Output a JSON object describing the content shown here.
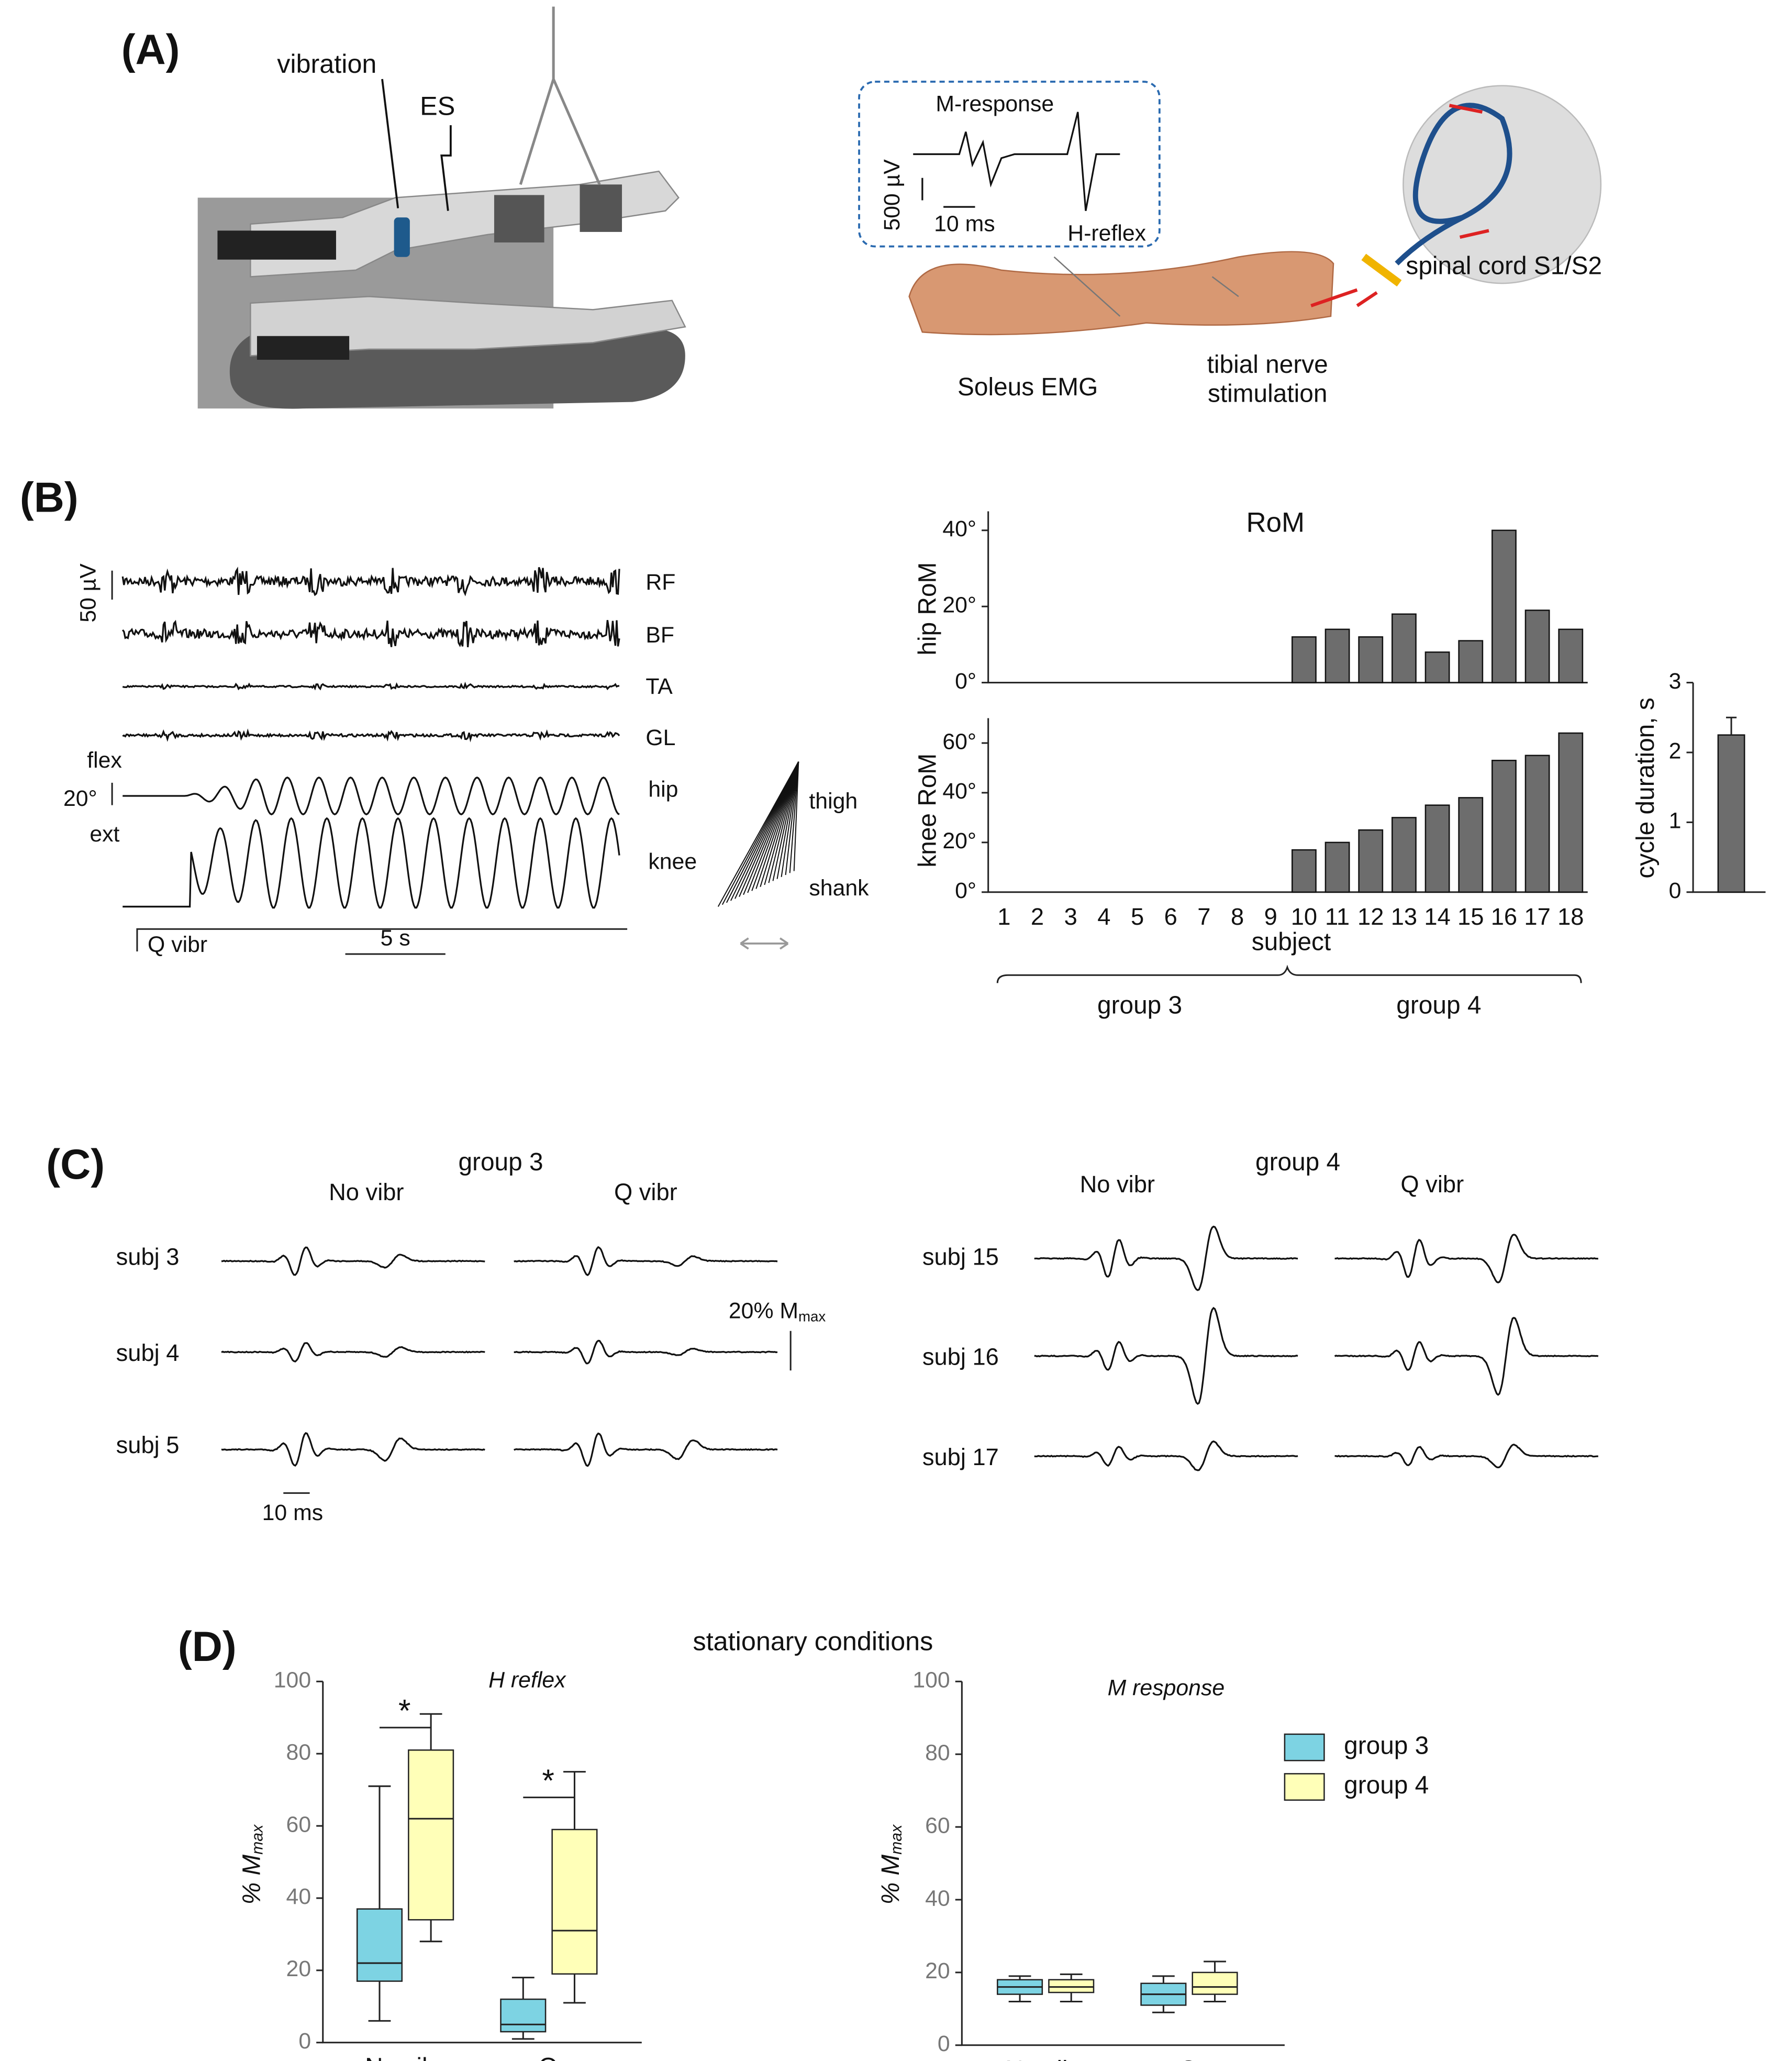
{
  "panel_a": {
    "label": "(A)",
    "vibration": "vibration",
    "es": "ES",
    "m_response": "M-response",
    "volt_scale": "500 µV",
    "time_scale": "10 ms",
    "h_reflex": "H-reflex",
    "soleus": "Soleus EMG",
    "tibial": [
      "tibial nerve",
      "stimulation"
    ],
    "spinal": "spinal cord S1/S2"
  },
  "panel_b": {
    "label": "(B)",
    "emg_scale": "50 µV",
    "traces": [
      "RF",
      "BF",
      "TA",
      "GL",
      "hip",
      "knee"
    ],
    "flex": "flex",
    "angle_scale": "20°",
    "ext": "ext",
    "stim": "Q vibr",
    "time_scale": "5 s",
    "thigh": "thigh",
    "shank": "shank"
  },
  "panel_c": {
    "label": "(C)",
    "groups": [
      "group 3",
      "group 4"
    ],
    "conditions": [
      "No vibr",
      "Q vibr"
    ],
    "subjects_3": [
      "subj 3",
      "subj 4",
      "subj 5"
    ],
    "subjects_4": [
      "subj 15",
      "subj 16",
      "subj 17"
    ],
    "amp_scale": "20% M",
    "amp_scale_sub": "max",
    "time_scale": "10 ms"
  },
  "panel_d": {
    "label": "(D)",
    "title": "stationary conditions"
  },
  "chart_data": [
    {
      "type": "bar",
      "title": "RoM",
      "ylabel": "hip RoM",
      "values": [
        null,
        null,
        null,
        null,
        null,
        null,
        null,
        null,
        null,
        12,
        14,
        12,
        18,
        8,
        11,
        40,
        19,
        14
      ],
      "color": "#6d6d6d",
      "ylim": [
        0,
        45
      ],
      "yticks": [
        {
          "value": 0,
          "label": "0°"
        },
        {
          "value": 20,
          "label": "20°"
        },
        {
          "value": 40,
          "label": "40°"
        }
      ]
    },
    {
      "type": "bar",
      "ylabel": "knee RoM",
      "xlabel": "subject",
      "categories": [
        "1",
        "2",
        "3",
        "4",
        "5",
        "6",
        "7",
        "8",
        "9",
        "10",
        "11",
        "12",
        "13",
        "14",
        "15",
        "16",
        "17",
        "18"
      ],
      "values": [
        null,
        null,
        null,
        null,
        null,
        null,
        null,
        null,
        null,
        17,
        20,
        25,
        30,
        35,
        38,
        53,
        55,
        64
      ],
      "color": "#6d6d6d",
      "ylim": [
        0,
        70
      ],
      "yticks": [
        {
          "value": 0,
          "label": "0°"
        },
        {
          "value": 20,
          "label": "20°"
        },
        {
          "value": 40,
          "label": "40°"
        },
        {
          "value": 60,
          "label": "60°"
        }
      ],
      "annotations": [
        "group 3",
        "group 4"
      ]
    },
    {
      "type": "bar",
      "ylabel": "cycle duration, s",
      "values": [
        2.25
      ],
      "errors": [
        0.25
      ],
      "color": "#6d6d6d",
      "ylim": [
        0,
        3
      ],
      "yticks": [
        0,
        1,
        2,
        3
      ]
    },
    {
      "type": "box",
      "title": "H reflex",
      "ylabel": "% M",
      "ylabel_sub": "max",
      "categories": [
        "No vibr",
        "Q"
      ],
      "ylim": [
        0,
        100
      ],
      "yticks": [
        0,
        20,
        40,
        60,
        80,
        100
      ],
      "annotations": [
        "*",
        "*"
      ],
      "series": [
        {
          "color": "#7dd3e3",
          "min": [
            6,
            1
          ],
          "q1": [
            17,
            3
          ],
          "median": [
            22,
            5
          ],
          "q3": [
            37,
            12
          ],
          "max": [
            71,
            18
          ]
        },
        {
          "color": "#ffffb8",
          "min": [
            28,
            11
          ],
          "q1": [
            34,
            19
          ],
          "median": [
            62,
            31
          ],
          "q3": [
            81,
            59
          ],
          "max": [
            91,
            75
          ]
        }
      ]
    },
    {
      "type": "box",
      "title": "M response",
      "ylabel": "% M",
      "ylabel_sub": "max",
      "categories": [
        "No vibr",
        "Q"
      ],
      "ylim": [
        0,
        100
      ],
      "yticks": [
        0,
        20,
        40,
        60,
        80,
        100
      ],
      "legend": "upper right",
      "series": [
        {
          "name": "group 3",
          "color": "#7dd3e3",
          "min": [
            12,
            9
          ],
          "q1": [
            14,
            11
          ],
          "median": [
            16,
            14
          ],
          "q3": [
            18,
            17
          ],
          "max": [
            19,
            19
          ]
        },
        {
          "name": "group 4",
          "color": "#ffffb8",
          "min": [
            12,
            12
          ],
          "q1": [
            14.5,
            14
          ],
          "median": [
            16,
            16
          ],
          "q3": [
            18,
            20
          ],
          "max": [
            19.5,
            23
          ]
        }
      ]
    }
  ]
}
